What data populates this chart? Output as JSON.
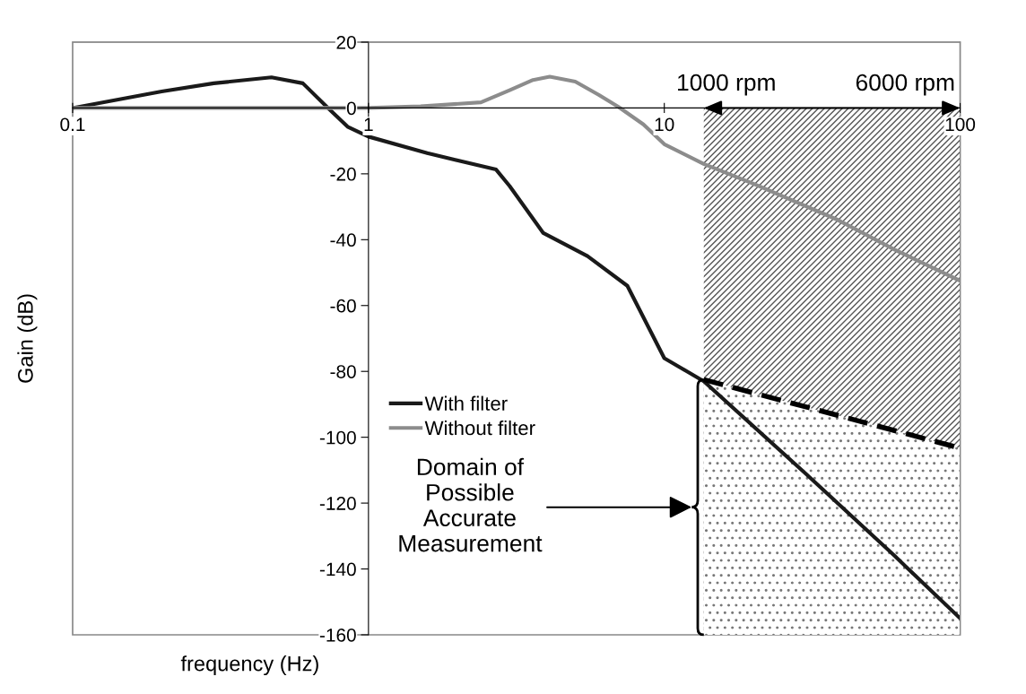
{
  "chart_data": {
    "type": "line",
    "xlabel": "frequency (Hz)",
    "ylabel": "Gain (dB)",
    "log": "x",
    "xlim": [
      0.1,
      100
    ],
    "xticks": [
      0.1,
      1,
      10,
      100
    ],
    "ylim": [
      -160,
      20
    ],
    "yticks": [
      -160,
      -140,
      -120,
      -100,
      -80,
      -60,
      -40,
      -20,
      0,
      20
    ],
    "grid": false,
    "legend": "bottom",
    "marker": "none",
    "series": [
      {
        "name": "With filter",
        "color": "#1a1a1a",
        "x": [
          0.1,
          0.2,
          0.3,
          0.47,
          0.6,
          0.73,
          0.85,
          1,
          1.58,
          2.7,
          3.0,
          3.9,
          5.5,
          7.5,
          10,
          13.6,
          30,
          60,
          100
        ],
        "values": [
          0,
          5,
          7.5,
          9.3,
          7.5,
          0,
          -5.7,
          -8.7,
          -13.7,
          -18.7,
          -23.7,
          -38,
          -45,
          -54,
          -76,
          -83,
          -111,
          -136,
          -155
        ]
      },
      {
        "name": "Without filter",
        "color": "#8c8c8c",
        "x": [
          0.1,
          0.3,
          0.6,
          1,
          1.5,
          2.4,
          3.0,
          3.6,
          4.1,
          5,
          6,
          7,
          8.5,
          10,
          13.6,
          20,
          38.6,
          60,
          100
        ],
        "values": [
          0,
          0,
          0,
          0,
          0.5,
          1.7,
          5.4,
          8.5,
          9.5,
          8,
          4,
          0.3,
          -5,
          -11,
          -17,
          -23,
          -34,
          -43,
          -52.5
        ]
      },
      {
        "type": "line",
        "color": "#000000",
        "line_style": "dashed",
        "x": [
          13.6,
          100
        ],
        "values": [
          -82.5,
          -103.3
        ],
        "lower": [
          -160,
          -160
        ],
        "upper": [
          -82.5,
          -103.3
        ]
      }
    ],
    "bands": [
      {
        "axis": "x",
        "from": 13.6,
        "to": 100,
        "color": "#555555"
      }
    ],
    "annotations": [
      {
        "text": "1000 rpm",
        "x": 13.6,
        "y": 0
      },
      {
        "text": "6000 rpm",
        "x": 100,
        "y": 0
      },
      "Domain of\nPossible\nAccurate\nMeasurement"
    ]
  }
}
